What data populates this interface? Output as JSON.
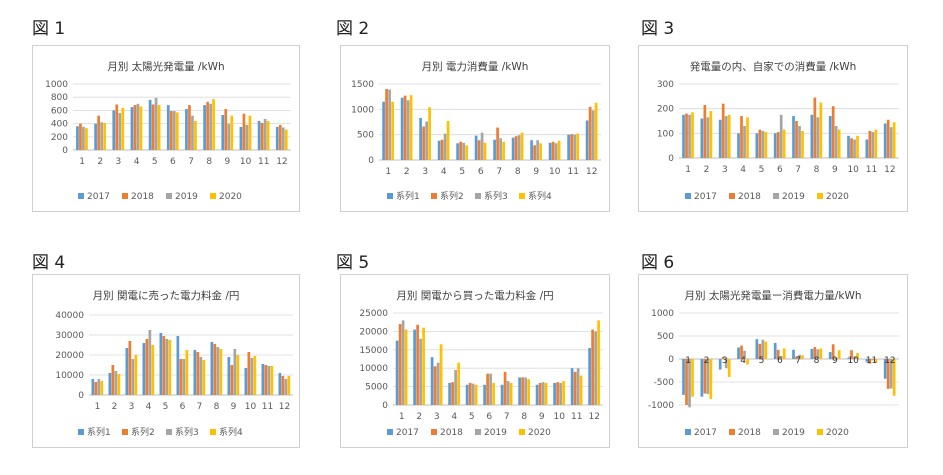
{
  "colors": {
    "series": [
      "#5B9BD5",
      "#ED7D31",
      "#A5A5A5",
      "#FFC000"
    ],
    "axis_text": "#595959",
    "title_text": "#404040",
    "grid": "#D9D9D9"
  },
  "chart_data": [
    {
      "panel_label": "図 1",
      "type": "bar",
      "title": "月別 太陽光発電量 /kWh",
      "categories": [
        "1",
        "2",
        "3",
        "4",
        "5",
        "6",
        "7",
        "8",
        "9",
        "10",
        "11",
        "12"
      ],
      "ylim": [
        0,
        1000
      ],
      "yticks": [
        0,
        200,
        400,
        600,
        800,
        1000
      ],
      "grid": true,
      "legend_position": "bottom",
      "series": [
        {
          "name": "2017",
          "values": [
            360,
            400,
            600,
            650,
            760,
            680,
            620,
            680,
            530,
            350,
            440,
            350
          ]
        },
        {
          "name": "2018",
          "values": [
            400,
            520,
            690,
            680,
            690,
            590,
            680,
            730,
            620,
            550,
            410,
            380
          ]
        },
        {
          "name": "2019",
          "values": [
            350,
            420,
            560,
            700,
            790,
            590,
            520,
            700,
            400,
            380,
            470,
            340
          ]
        },
        {
          "name": "2020",
          "values": [
            330,
            410,
            640,
            660,
            680,
            570,
            440,
            770,
            520,
            520,
            440,
            310
          ]
        }
      ]
    },
    {
      "panel_label": "図 2",
      "type": "bar",
      "title": "月別 電力消費量 /kWh",
      "categories": [
        "1",
        "2",
        "3",
        "4",
        "5",
        "6",
        "7",
        "8",
        "9",
        "10",
        "11",
        "12"
      ],
      "ylim": [
        0,
        1500
      ],
      "yticks": [
        0,
        500,
        1000,
        1500
      ],
      "grid": true,
      "legend_position": "bottom",
      "series": [
        {
          "name": "系列1",
          "values": [
            1150,
            1230,
            830,
            380,
            330,
            480,
            400,
            440,
            390,
            340,
            500,
            780
          ]
        },
        {
          "name": "系列2",
          "values": [
            1400,
            1270,
            660,
            400,
            360,
            390,
            640,
            470,
            290,
            360,
            510,
            1050
          ]
        },
        {
          "name": "系列3",
          "values": [
            1390,
            1180,
            760,
            520,
            340,
            540,
            430,
            490,
            390,
            330,
            500,
            980
          ]
        },
        {
          "name": "系列4",
          "values": [
            1150,
            1280,
            1040,
            770,
            290,
            340,
            360,
            540,
            330,
            380,
            520,
            1130
          ]
        }
      ]
    },
    {
      "panel_label": "図 3",
      "type": "bar",
      "title": "発電量の内、自家での消費量 /kWh",
      "categories": [
        "1",
        "2",
        "3",
        "4",
        "5",
        "6",
        "7",
        "8",
        "9",
        "10",
        "11",
        "12"
      ],
      "ylim": [
        0,
        300
      ],
      "yticks": [
        0,
        100,
        200,
        300
      ],
      "grid": true,
      "legend_position": "bottom",
      "series": [
        {
          "name": "2017",
          "values": [
            175,
            160,
            155,
            100,
            100,
            100,
            170,
            175,
            170,
            90,
            75,
            140
          ]
        },
        {
          "name": "2018",
          "values": [
            180,
            215,
            220,
            170,
            115,
            105,
            150,
            245,
            210,
            80,
            110,
            155
          ]
        },
        {
          "name": "2019",
          "values": [
            175,
            165,
            170,
            130,
            110,
            175,
            130,
            165,
            130,
            75,
            105,
            125
          ]
        },
        {
          "name": "2020",
          "values": [
            185,
            190,
            175,
            165,
            105,
            115,
            110,
            225,
            115,
            90,
            115,
            145
          ]
        }
      ]
    },
    {
      "panel_label": "図 4",
      "type": "bar",
      "title": "月別 関電に売った電力料金 /円",
      "categories": [
        "1",
        "2",
        "3",
        "4",
        "5",
        "6",
        "7",
        "8",
        "9",
        "10",
        "11",
        "12"
      ],
      "ylim": [
        0,
        40000
      ],
      "yticks": [
        0,
        10000,
        20000,
        30000,
        40000
      ],
      "grid": true,
      "legend_position": "bottom",
      "series": [
        {
          "name": "系列1",
          "values": [
            8000,
            11000,
            23500,
            26000,
            31000,
            29500,
            22500,
            26500,
            19000,
            13500,
            15500,
            11000
          ]
        },
        {
          "name": "系列2",
          "values": [
            6500,
            15000,
            27000,
            28000,
            29500,
            18000,
            21500,
            25500,
            15000,
            21500,
            15000,
            9500
          ]
        },
        {
          "name": "系列3",
          "values": [
            8000,
            12000,
            18000,
            32500,
            28000,
            18000,
            19000,
            24000,
            23000,
            18500,
            14500,
            8000
          ]
        },
        {
          "name": "系列4",
          "values": [
            7000,
            10500,
            20000,
            25000,
            27500,
            22500,
            17500,
            23000,
            20000,
            19500,
            14500,
            9500
          ]
        }
      ]
    },
    {
      "panel_label": "図 5",
      "type": "bar",
      "title": "月別 関電から買った電力料金 /円",
      "categories": [
        "1",
        "2",
        "3",
        "4",
        "5",
        "6",
        "7",
        "8",
        "9",
        "10",
        "11",
        "12"
      ],
      "ylim": [
        0,
        25000
      ],
      "yticks": [
        0,
        5000,
        10000,
        15000,
        20000,
        25000
      ],
      "grid": true,
      "legend_position": "bottom",
      "series": [
        {
          "name": "2017",
          "values": [
            17500,
            20500,
            13000,
            6000,
            5500,
            5500,
            5500,
            7500,
            5500,
            6000,
            10000,
            15500
          ]
        },
        {
          "name": "2018",
          "values": [
            22000,
            21800,
            10500,
            6200,
            6000,
            8500,
            9000,
            7500,
            6000,
            6200,
            9000,
            20500
          ]
        },
        {
          "name": "2019",
          "values": [
            23000,
            18000,
            11500,
            9500,
            5800,
            8500,
            6500,
            7500,
            6200,
            6000,
            10000,
            20000
          ]
        },
        {
          "name": "2020",
          "values": [
            20500,
            21000,
            16500,
            11500,
            5500,
            6000,
            6000,
            7000,
            6000,
            6500,
            8000,
            23000
          ]
        }
      ]
    },
    {
      "panel_label": "図 6",
      "type": "bar",
      "title": "月別 太陽光発電量ー消費電力量/kWh",
      "categories": [
        "1",
        "2",
        "3",
        "4",
        "5",
        "6",
        "7",
        "8",
        "9",
        "10",
        "11",
        "12"
      ],
      "ylim": [
        -1000,
        1000
      ],
      "yticks": [
        -1000,
        -500,
        0,
        500,
        1000
      ],
      "grid": true,
      "legend_position": "bottom",
      "series": [
        {
          "name": "2017",
          "values": [
            -780,
            -820,
            -230,
            250,
            430,
            350,
            200,
            220,
            150,
            20,
            -60,
            -430
          ]
        },
        {
          "name": "2018",
          "values": [
            -1000,
            -750,
            40,
            290,
            330,
            200,
            50,
            260,
            320,
            190,
            -100,
            -650
          ]
        },
        {
          "name": "2019",
          "values": [
            -1050,
            -760,
            -200,
            180,
            420,
            60,
            90,
            210,
            30,
            60,
            -30,
            -640
          ]
        },
        {
          "name": "2020",
          "values": [
            -820,
            -870,
            -390,
            -120,
            380,
            230,
            80,
            230,
            190,
            130,
            -80,
            -800
          ]
        }
      ]
    }
  ]
}
